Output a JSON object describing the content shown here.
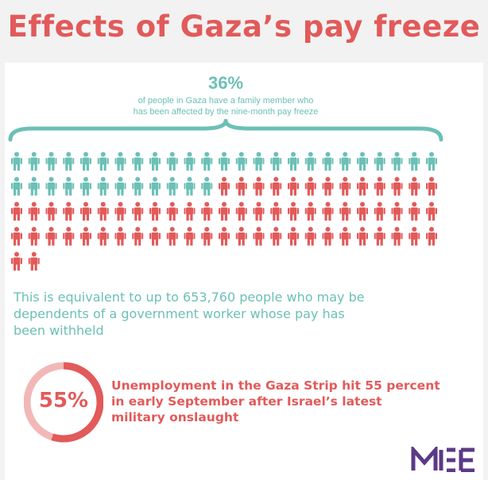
{
  "title": "Effects of Gaza’s pay freeze",
  "stat": {
    "percent": "36%",
    "line1": "of people in Gaza have a family member who",
    "line2": "has been affected by the nine-month pay freeze"
  },
  "pictogram": {
    "total_icons": 102,
    "highlighted_icons": 37,
    "colors": {
      "highlighted": "#6cc0b6",
      "rest": "#e25a5a"
    },
    "icon": "person-icon"
  },
  "equivalent": {
    "line1": "This is equivalent to up to 653,760 people who may be",
    "line2": "dependents of a government worker whose pay has",
    "line3": "been withheld"
  },
  "unemployment": {
    "percent_label": "55%",
    "percent_value": 55,
    "line1": "Unemployment in the Gaza Strip hit 55 percent",
    "line2": "in early September after Israel’s latest",
    "line3": "military onslaught"
  },
  "logo": {
    "text": "MEE",
    "color": "#5a3a86"
  },
  "colors": {
    "accent_red": "#e25a5a",
    "accent_teal": "#6cc0b6",
    "ring_light": "#f2b8b8"
  }
}
